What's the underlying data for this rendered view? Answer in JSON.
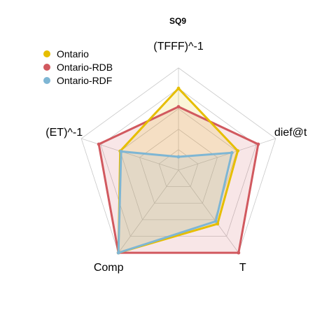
{
  "chart_data": {
    "type": "radar",
    "title": "SQ9",
    "axes": [
      "(TFFF)^-1",
      "dief@t",
      "T",
      "Comp",
      "(ET)^-1"
    ],
    "range": [
      0,
      1
    ],
    "grid_levels": 5,
    "legend_position": "top-left",
    "series": [
      {
        "name": "Ontario",
        "color": "#E6BE00",
        "values": [
          0.8,
          0.61,
          0.65,
          1.0,
          0.6
        ]
      },
      {
        "name": "Ontario-RDB",
        "color": "#D1595F",
        "values": [
          0.62,
          0.82,
          1.0,
          1.0,
          0.82
        ]
      },
      {
        "name": "Ontario-RDF",
        "color": "#7EB6D4",
        "values": [
          0.13,
          0.55,
          0.62,
          1.0,
          0.59
        ]
      }
    ]
  }
}
